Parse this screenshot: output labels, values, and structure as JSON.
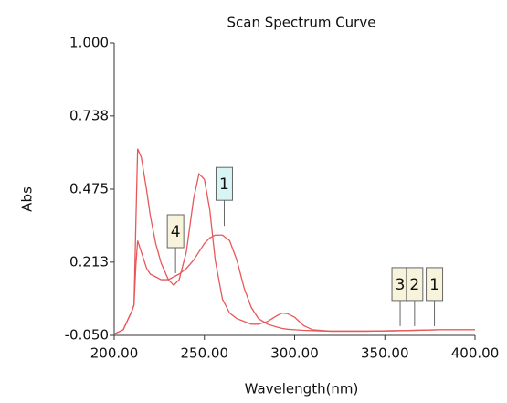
{
  "chart_data": {
    "type": "line",
    "title": "Scan Spectrum Curve",
    "x_label": "Wavelength(nm)",
    "y_label": "Abs",
    "x": [
      200,
      205,
      210,
      211,
      212,
      213,
      215,
      218,
      220,
      223,
      226,
      230,
      233,
      236,
      240,
      244,
      247,
      250,
      253,
      256,
      260,
      264,
      268,
      272,
      276,
      280,
      285,
      290,
      293,
      296,
      300,
      305,
      310,
      320,
      340,
      360,
      380,
      400
    ],
    "series": [
      {
        "color": "#e8585a",
        "values": [
          -0.045,
          -0.03,
          0.04,
          0.06,
          0.35,
          0.62,
          0.59,
          0.47,
          0.38,
          0.28,
          0.21,
          0.15,
          0.13,
          0.15,
          0.25,
          0.44,
          0.53,
          0.51,
          0.4,
          0.22,
          0.08,
          0.03,
          0.01,
          0.0,
          -0.01,
          -0.01,
          0.0,
          0.02,
          0.03,
          0.028,
          0.015,
          -0.015,
          -0.03,
          -0.035,
          -0.035,
          -0.033,
          -0.03,
          -0.03
        ]
      },
      {
        "color": "#e8585a",
        "values": [
          -0.045,
          -0.03,
          0.04,
          0.06,
          0.2,
          0.29,
          0.25,
          0.19,
          0.17,
          0.16,
          0.15,
          0.15,
          0.16,
          0.17,
          0.19,
          0.22,
          0.25,
          0.28,
          0.3,
          0.31,
          0.31,
          0.29,
          0.22,
          0.12,
          0.05,
          0.01,
          -0.01,
          -0.02,
          -0.025,
          -0.028,
          -0.03,
          -0.032,
          -0.033,
          -0.035,
          -0.035,
          -0.033,
          -0.03,
          -0.03
        ]
      }
    ],
    "xlim": [
      200,
      400
    ],
    "xticks": [
      {
        "value": 200,
        "label": "200.00"
      },
      {
        "value": 250,
        "label": "250.00"
      },
      {
        "value": 300,
        "label": "300.00"
      },
      {
        "value": 350,
        "label": "350.00"
      },
      {
        "value": 400,
        "label": "400.00"
      }
    ],
    "ylim": [
      -0.05,
      1.0
    ],
    "yticks": [
      {
        "value": -0.05,
        "label": "-0.050"
      },
      0.213,
      0.475,
      0.738,
      {
        "value": 1.0,
        "label": "1.000"
      }
    ],
    "annotations": [
      {
        "label": "1",
        "x": 261,
        "y": 0.33,
        "color": "#d8f4f4"
      },
      {
        "label": "4",
        "x": 234,
        "y": 0.16,
        "color": "#f8f4dc"
      },
      {
        "label": "3",
        "x": 358.5,
        "y": -0.03,
        "color": "#f8f4dc"
      },
      {
        "label": "2",
        "x": 366.5,
        "y": -0.03,
        "color": "#f8f4dc"
      },
      {
        "label": "1",
        "x": 377.5,
        "y": -0.03,
        "color": "#f8f4dc"
      }
    ]
  }
}
